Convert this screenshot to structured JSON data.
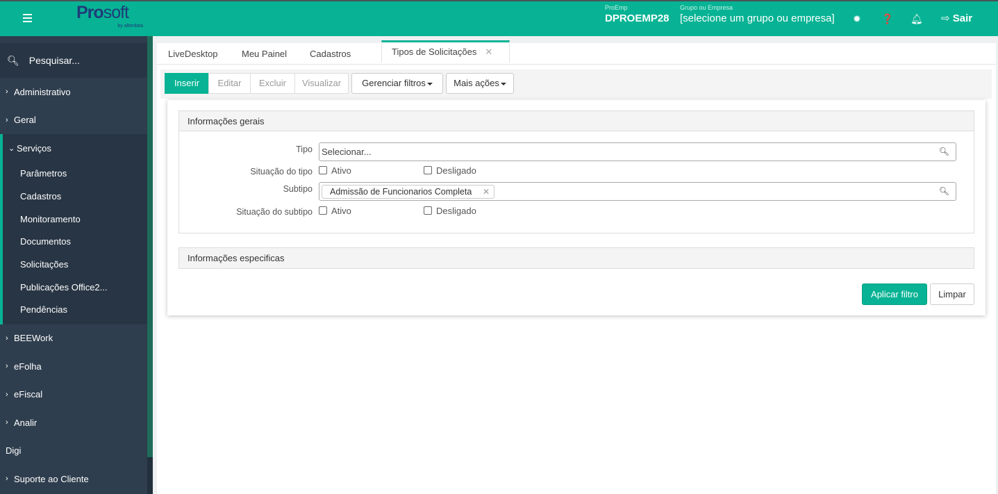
{
  "header": {
    "logo": "Prosoft",
    "logo_sub": "by alterdata",
    "proemp_label": "ProEmp",
    "proemp_value": "DPROEMP28",
    "group_label": "Grupo ou Empresa",
    "group_value": "[selecione um grupo ou empresa]",
    "exit_label": "Sair",
    "brand_color": "#07b394"
  },
  "sidebar": {
    "search_placeholder": "Pesquisar...",
    "items_top": [
      {
        "label": "Administrativo"
      },
      {
        "label": "Geral"
      }
    ],
    "open": {
      "label": "Serviços",
      "children": [
        "Parâmetros",
        "Cadastros",
        "Monitoramento",
        "Documentos",
        "Solicitações",
        "Publicações Office2...",
        "Pendências"
      ]
    },
    "items_bottom": [
      {
        "label": "BEEWork"
      },
      {
        "label": "eFolha"
      },
      {
        "label": "eFiscal"
      },
      {
        "label": "Analir"
      },
      {
        "label": "Digi"
      },
      {
        "label": "Suporte ao Cliente"
      }
    ]
  },
  "tabs": [
    "LiveDesktop",
    "Meu Painel",
    "Cadastros",
    "Tipos de Solicitações"
  ],
  "toolbar": {
    "insert": "Inserir",
    "edit": "Editar",
    "delete": "Excluir",
    "view": "Visualizar",
    "filters": "Gerenciar filtros",
    "more": "Mais ações"
  },
  "filter": {
    "general_title": "Informações gerais",
    "tipo_label": "Tipo",
    "tipo_placeholder": "Selecionar...",
    "sit_tipo_label": "Situação do tipo",
    "ativo": "Ativo",
    "desligado": "Desligado",
    "subtipo_label": "Subtipo",
    "subtipo_tag": "Admissão de Funcionarios Completa",
    "sit_subtipo_label": "Situação do subtipo",
    "specific_title": "Informações especificas",
    "apply": "Aplicar filtro",
    "clear": "Limpar"
  }
}
